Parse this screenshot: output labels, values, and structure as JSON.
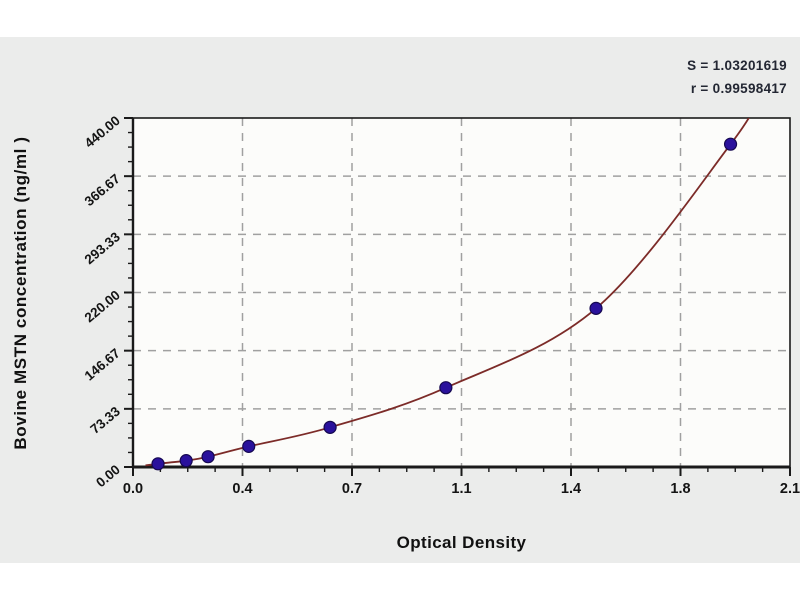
{
  "panel": {
    "background": "#ebeceb",
    "plot_background": "#fcfcfa"
  },
  "chart_data": {
    "type": "scatter",
    "title": "",
    "xlabel": "Optical Density",
    "ylabel": "Bovine MSTN concentration (ng/ml )",
    "xlim": [
      0,
      2.1
    ],
    "ylim": [
      0,
      440
    ],
    "x_major_ticks": [
      0,
      0.35,
      0.7,
      1.05,
      1.4,
      1.75,
      2.1
    ],
    "x_tick_labels": [
      "0.0",
      "0.4",
      "0.7",
      "1.1",
      "1.4",
      "1.8",
      "2.1"
    ],
    "y_major_ticks": [
      0,
      73.33,
      146.67,
      220,
      293.33,
      366.67,
      440
    ],
    "y_tick_labels": [
      "0.00",
      "73.33",
      "146.67",
      "220.00",
      "293.33",
      "366.67",
      "440.00"
    ],
    "minor_divisions_per_major": 4,
    "grid": "dashed gray lines at interior major ticks, horizontal and vertical",
    "legend": null,
    "series": [
      {
        "name": "standard-points",
        "type": "scatter",
        "points": [
          [
            0.08,
            4
          ],
          [
            0.17,
            8
          ],
          [
            0.24,
            13
          ],
          [
            0.37,
            26
          ],
          [
            0.63,
            50
          ],
          [
            1.0,
            100
          ],
          [
            1.48,
            200
          ],
          [
            1.91,
            407
          ]
        ]
      },
      {
        "name": "fitted-curve",
        "type": "line",
        "points": [
          [
            0.04,
            2
          ],
          [
            0.08,
            4
          ],
          [
            0.17,
            8
          ],
          [
            0.24,
            13
          ],
          [
            0.37,
            26
          ],
          [
            0.63,
            50
          ],
          [
            1.0,
            100
          ],
          [
            1.48,
            200
          ],
          [
            1.91,
            407
          ],
          [
            2.02,
            480
          ]
        ]
      }
    ],
    "annotations": [
      {
        "text": "S = 1.03201619"
      },
      {
        "text": "r = 0.99598417"
      }
    ],
    "colors": {
      "curve": "#7c2b28",
      "marker_fill": "#2a119c",
      "marker_edge": "#150850",
      "grid": "#a0a0a0",
      "axis": "#1a1a1a",
      "tick_text": "#141414"
    }
  }
}
